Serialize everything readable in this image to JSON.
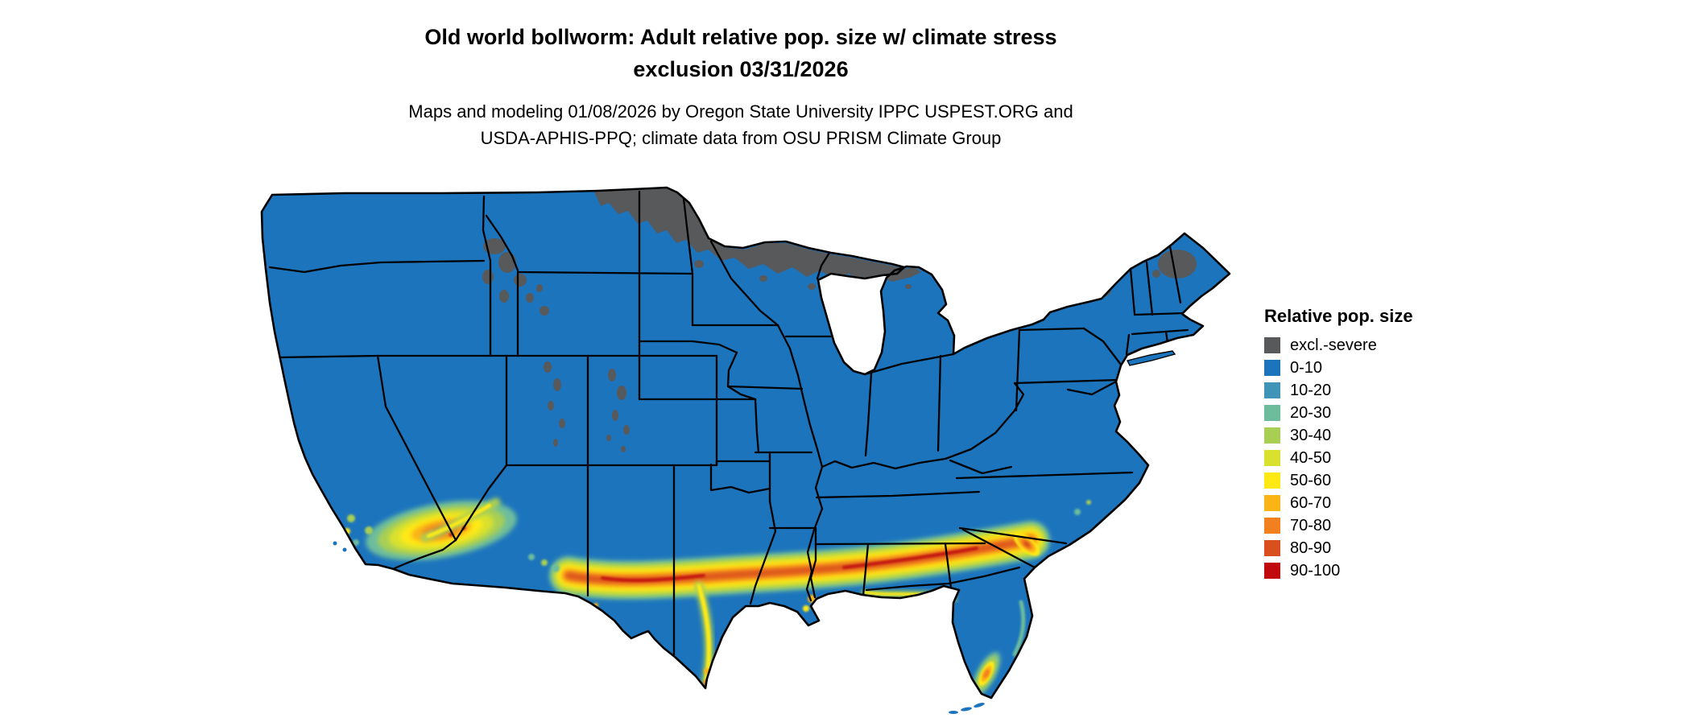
{
  "title": {
    "line1": "Old world bollworm: Adult relative pop. size w/ climate stress",
    "line2": "exclusion 03/31/2026"
  },
  "subtitle": {
    "line1": "Maps and modeling 01/08/2026 by Oregon State University IPPC USPEST.ORG and",
    "line2": "USDA-APHIS-PPQ; climate data from OSU PRISM Climate Group"
  },
  "legend": {
    "title": "Relative pop. size",
    "items": [
      {
        "key": "excl",
        "label": "excl.-severe",
        "color": "#58595b"
      },
      {
        "key": "b0",
        "label": "0-10",
        "color": "#1c74bd"
      },
      {
        "key": "b10",
        "label": "10-20",
        "color": "#4094b8"
      },
      {
        "key": "b20",
        "label": "20-30",
        "color": "#6dbd9c"
      },
      {
        "key": "b30",
        "label": "30-40",
        "color": "#a8cf54"
      },
      {
        "key": "b40",
        "label": "40-50",
        "color": "#d9e12f"
      },
      {
        "key": "b50",
        "label": "50-60",
        "color": "#ffe913"
      },
      {
        "key": "b60",
        "label": "60-70",
        "color": "#fbb416"
      },
      {
        "key": "b70",
        "label": "70-80",
        "color": "#f2801e"
      },
      {
        "key": "b80",
        "label": "80-90",
        "color": "#d94f1e"
      },
      {
        "key": "b90",
        "label": "90-100",
        "color": "#c00a0d"
      }
    ]
  },
  "map": {
    "region": "Continental United States",
    "boundary_color": "#000000",
    "water_color": "#ffffff"
  },
  "chart_data": {
    "type": "choropleth-map",
    "title": "Old world bollworm: Adult relative pop. size w/ climate stress exclusion 03/31/2026",
    "legend_title": "Relative pop. size",
    "classes": [
      "excl.-severe",
      "0-10",
      "10-20",
      "20-30",
      "30-40",
      "40-50",
      "50-60",
      "60-70",
      "70-80",
      "80-90",
      "90-100"
    ],
    "class_colors": [
      "#58595b",
      "#1c74bd",
      "#4094b8",
      "#6dbd9c",
      "#a8cf54",
      "#d9e12f",
      "#ffe913",
      "#fbb416",
      "#f2801e",
      "#d94f1e",
      "#c00a0d"
    ],
    "observations": [
      "Most of the continental US is in the 0-10 class (blue)",
      "excl.-severe (dark gray) band along the northern border over eastern North Dakota, Minnesota, northern Wisconsin and upper Michigan, plus northern Maine, the Adirondacks and high Rocky Mountain patches",
      "High-value gradient band (30 up to 90-100) along the Gulf Coast from south Texas through Louisiana, Mississippi, Alabama and Georgia into north Florida, reddest in south-central Texas and Alabama/Georgia",
      "Hotspot (up to 80-90) across southern Arizona extending into far southern California",
      "Small 40-80 pocket at the southern tip of Florida and a 70-90 pocket on the Georgia coast"
    ]
  }
}
